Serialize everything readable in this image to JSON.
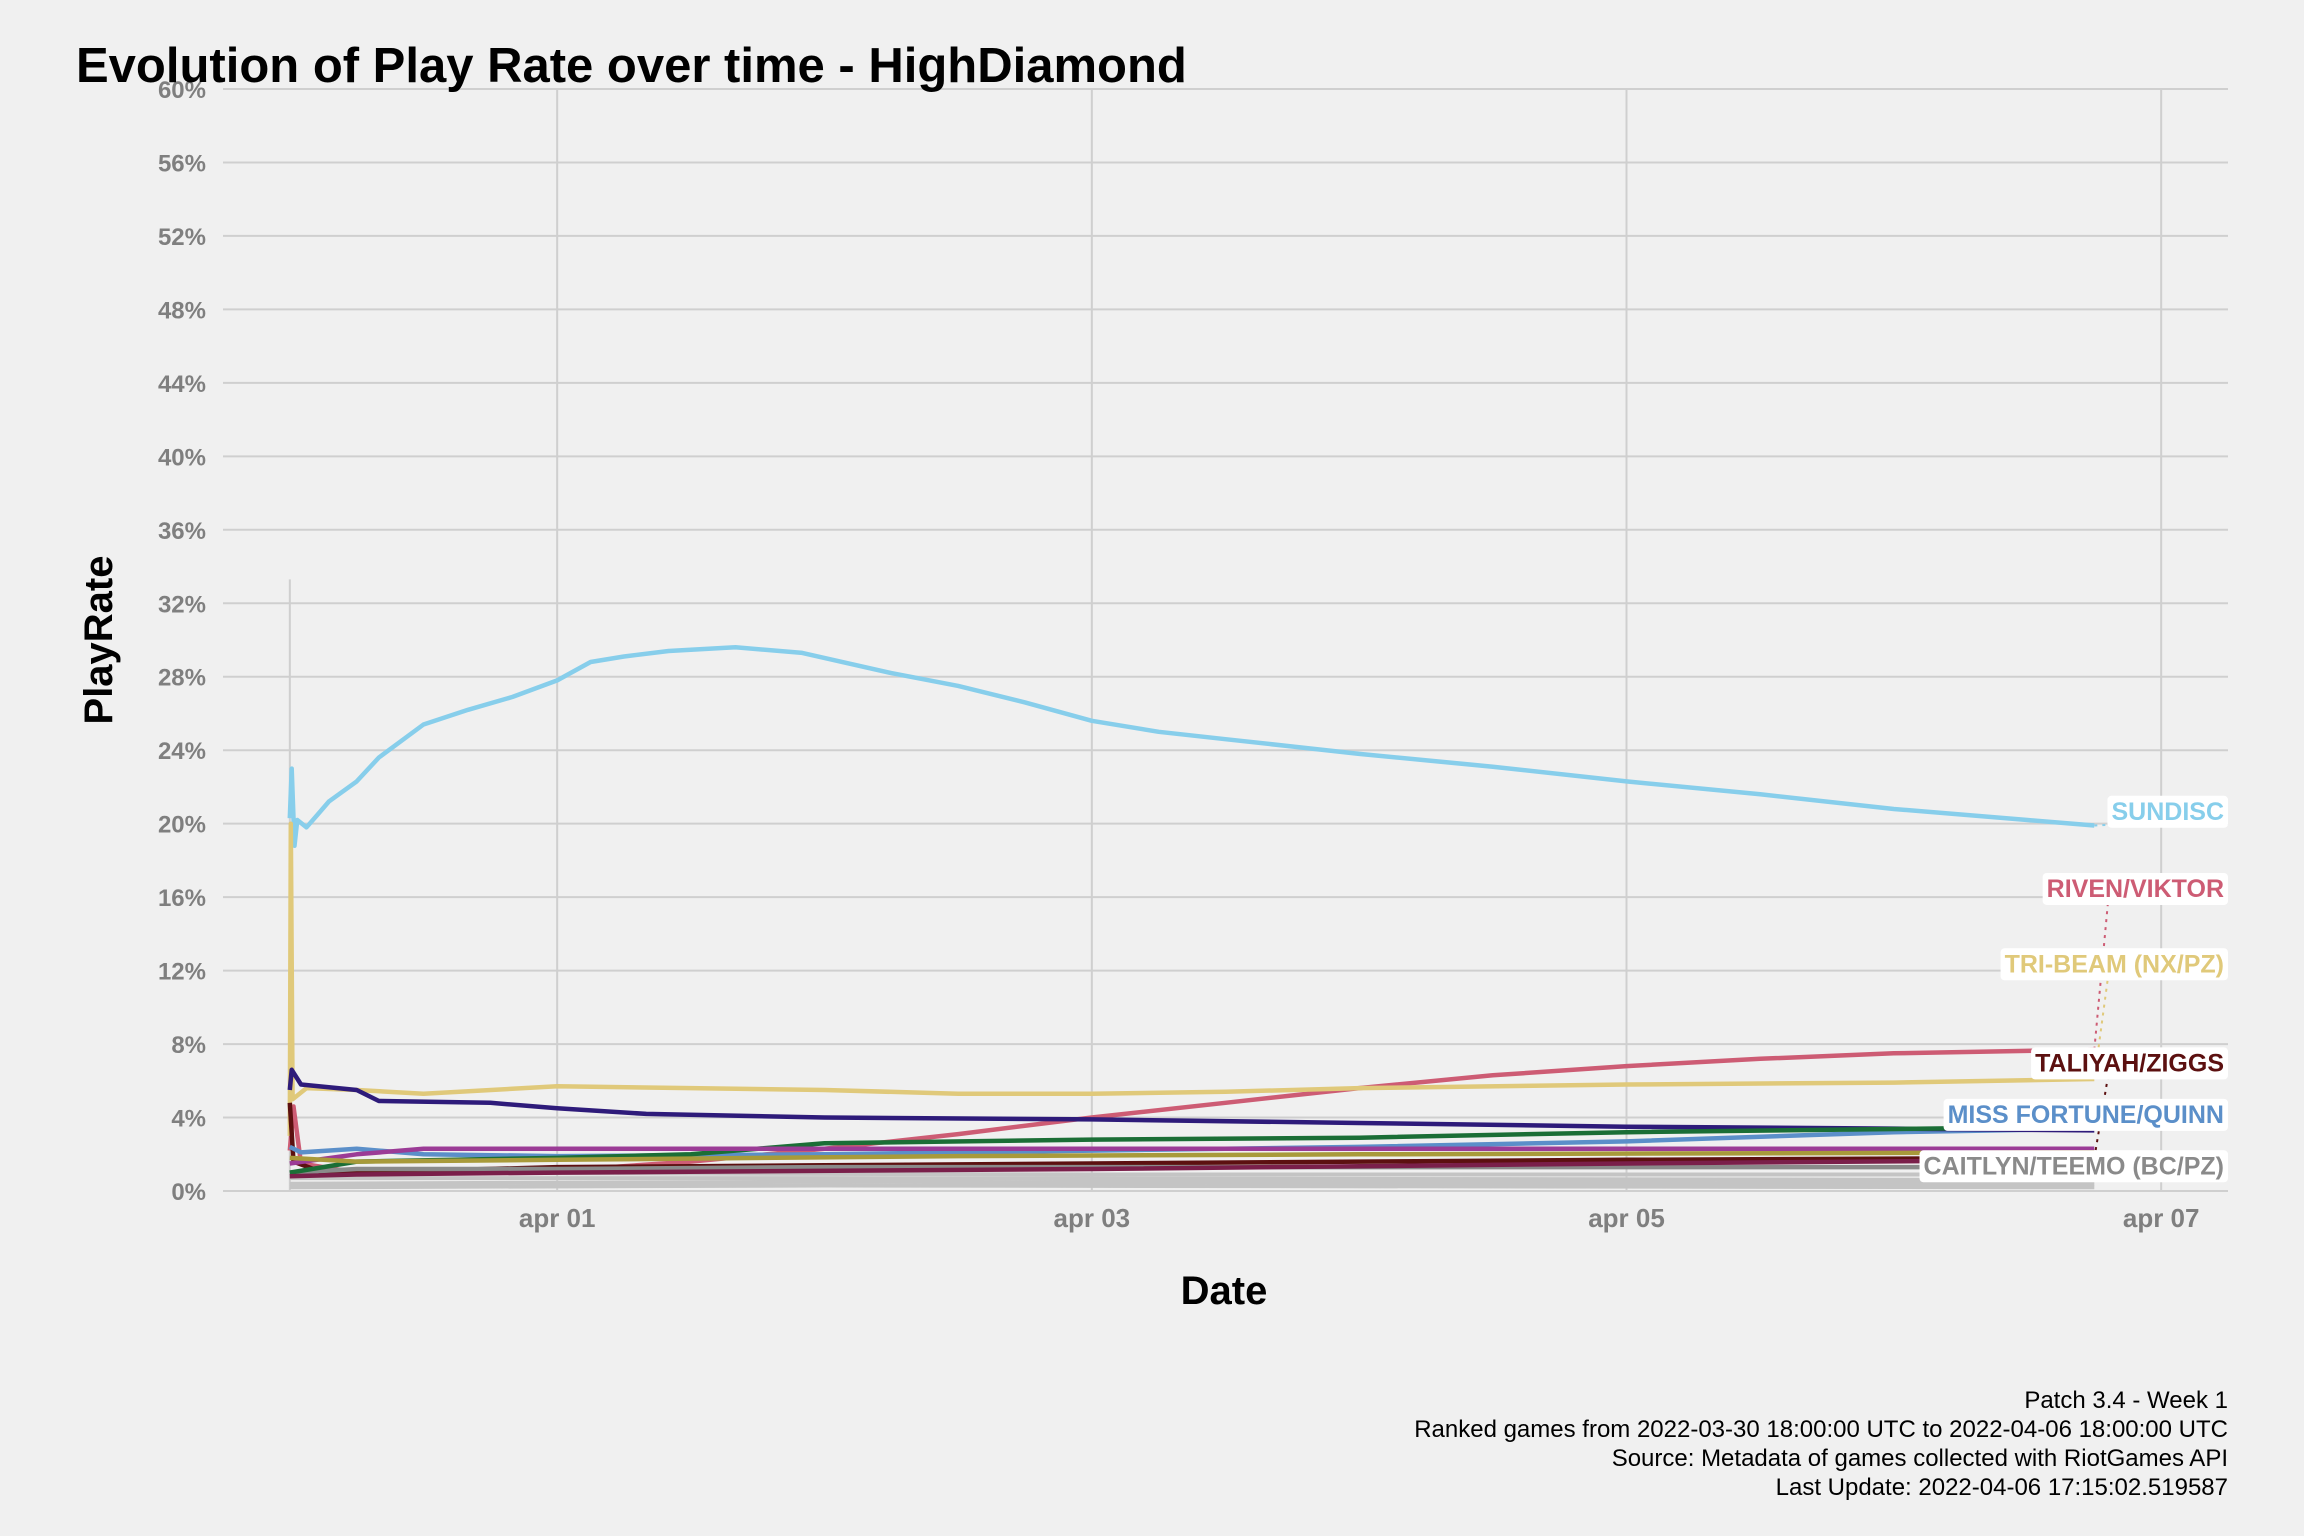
{
  "chart_data": {
    "type": "line",
    "title": "Evolution of Play Rate over time - HighDiamond",
    "xlabel": "Date",
    "ylabel": "PlayRate",
    "x_range": [
      "2022-03-30 18:00",
      "2022-04-07 06:00"
    ],
    "ylim": [
      0,
      60
    ],
    "y_ticks": [
      "0%",
      "4%",
      "8%",
      "12%",
      "16%",
      "20%",
      "24%",
      "28%",
      "32%",
      "36%",
      "40%",
      "44%",
      "48%",
      "52%",
      "56%",
      "60%"
    ],
    "y_tick_values": [
      0,
      4,
      8,
      12,
      16,
      20,
      24,
      28,
      32,
      36,
      40,
      44,
      48,
      52,
      56,
      60
    ],
    "x_ticks": [
      {
        "label": "apr 01",
        "x": "2022-04-01 00:00"
      },
      {
        "label": "apr 03",
        "x": "2022-04-03 00:00"
      },
      {
        "label": "apr 05",
        "x": "2022-04-05 00:00"
      },
      {
        "label": "apr 07",
        "x": "2022-04-07 00:00"
      }
    ],
    "grid": true,
    "legend": "direct labels at right end of lines",
    "series": [
      {
        "name": "SUNDISC",
        "color": "#87ceeb",
        "label_y": 20.7,
        "label_anchor": [
          20,
          20
        ],
        "points": [
          [
            "2022-03-31 00:00",
            20.3
          ],
          [
            "2022-03-31 00:10",
            23.0
          ],
          [
            "2022-03-31 00:25",
            18.8
          ],
          [
            "2022-03-31 00:40",
            20.2
          ],
          [
            "2022-03-31 01:30",
            19.8
          ],
          [
            "2022-03-31 02:30",
            20.5
          ],
          [
            "2022-03-31 03:30",
            21.2
          ],
          [
            "2022-03-31 06:00",
            22.3
          ],
          [
            "2022-03-31 08:00",
            23.6
          ],
          [
            "2022-03-31 12:00",
            25.4
          ],
          [
            "2022-03-31 16:00",
            26.2
          ],
          [
            "2022-03-31 20:00",
            26.9
          ],
          [
            "2022-04-01 00:00",
            27.8
          ],
          [
            "2022-04-01 03:00",
            28.8
          ],
          [
            "2022-04-01 06:00",
            29.1
          ],
          [
            "2022-04-01 10:00",
            29.4
          ],
          [
            "2022-04-01 16:00",
            29.6
          ],
          [
            "2022-04-01 22:00",
            29.3
          ],
          [
            "2022-04-02 06:00",
            28.2
          ],
          [
            "2022-04-02 12:00",
            27.5
          ],
          [
            "2022-04-02 18:00",
            26.6
          ],
          [
            "2022-04-03 00:00",
            25.6
          ],
          [
            "2022-04-03 06:00",
            25.0
          ],
          [
            "2022-04-03 12:00",
            24.6
          ],
          [
            "2022-04-03 18:00",
            24.2
          ],
          [
            "2022-04-04 00:00",
            23.8
          ],
          [
            "2022-04-04 12:00",
            23.1
          ],
          [
            "2022-04-05 00:00",
            22.3
          ],
          [
            "2022-04-05 12:00",
            21.6
          ],
          [
            "2022-04-06 00:00",
            20.8
          ],
          [
            "2022-04-06 12:00",
            20.2
          ],
          [
            "2022-04-06 18:00",
            19.9
          ]
        ]
      },
      {
        "name": "RIVEN/VIKTOR",
        "color": "#cd5c74",
        "label_y": 16.5,
        "label_anchor": [
          20,
          15
        ],
        "points": [
          [
            "2022-03-31 00:00",
            2.2
          ],
          [
            "2022-03-31 00:20",
            4.6
          ],
          [
            "2022-03-31 01:00",
            1.5
          ],
          [
            "2022-03-31 06:00",
            1.0
          ],
          [
            "2022-04-01 00:00",
            1.1
          ],
          [
            "2022-04-01 12:00",
            1.6
          ],
          [
            "2022-04-02 00:00",
            2.3
          ],
          [
            "2022-04-02 12:00",
            3.1
          ],
          [
            "2022-04-03 00:00",
            4.0
          ],
          [
            "2022-04-03 12:00",
            4.8
          ],
          [
            "2022-04-04 00:00",
            5.6
          ],
          [
            "2022-04-04 12:00",
            6.3
          ],
          [
            "2022-04-05 00:00",
            6.8
          ],
          [
            "2022-04-05 12:00",
            7.2
          ],
          [
            "2022-04-06 00:00",
            7.5
          ],
          [
            "2022-04-06 18:00",
            7.7
          ]
        ]
      },
      {
        "name": "TRI-BEAM (NX/PZ)",
        "color": "#e0c97a",
        "label_y": 12.4,
        "label_anchor": [
          20,
          12
        ],
        "points": [
          [
            "2022-03-31 00:00",
            3.0
          ],
          [
            "2022-03-31 00:05",
            20.0
          ],
          [
            "2022-03-31 00:15",
            5.0
          ],
          [
            "2022-03-31 01:30",
            5.6
          ],
          [
            "2022-03-31 06:00",
            5.5
          ],
          [
            "2022-03-31 12:00",
            5.3
          ],
          [
            "2022-04-01 00:00",
            5.7
          ],
          [
            "2022-04-01 12:00",
            5.6
          ],
          [
            "2022-04-02 00:00",
            5.5
          ],
          [
            "2022-04-02 12:00",
            5.3
          ],
          [
            "2022-04-03 00:00",
            5.3
          ],
          [
            "2022-04-03 12:00",
            5.4
          ],
          [
            "2022-04-04 00:00",
            5.6
          ],
          [
            "2022-04-05 00:00",
            5.8
          ],
          [
            "2022-04-06 00:00",
            5.9
          ],
          [
            "2022-04-06 18:00",
            6.1
          ]
        ]
      },
      {
        "name": "TALIYAH/ZIGGS",
        "color": "#5c1010",
        "label_y": 7.0,
        "label_anchor": [
          19,
          1.8
        ],
        "points": [
          [
            "2022-03-31 00:00",
            4.8
          ],
          [
            "2022-03-31 00:20",
            1.6
          ],
          [
            "2022-03-31 03:00",
            1.0
          ],
          [
            "2022-03-31 12:00",
            1.1
          ],
          [
            "2022-04-01 00:00",
            1.3
          ],
          [
            "2022-04-02 00:00",
            1.4
          ],
          [
            "2022-04-03 00:00",
            1.5
          ],
          [
            "2022-04-04 00:00",
            1.6
          ],
          [
            "2022-04-05 00:00",
            1.7
          ],
          [
            "2022-04-06 18:00",
            1.8
          ]
        ]
      },
      {
        "name": "MISS FORTUNE/QUINN",
        "color": "#5b8fc9",
        "label_y": 4.2,
        "label_anchor": [
          19,
          3.4
        ],
        "points": [
          [
            "2022-03-31 00:00",
            2.4
          ],
          [
            "2022-03-31 01:00",
            2.1
          ],
          [
            "2022-03-31 06:00",
            2.3
          ],
          [
            "2022-03-31 12:00",
            2.0
          ],
          [
            "2022-04-01 00:00",
            1.9
          ],
          [
            "2022-04-02 00:00",
            2.0
          ],
          [
            "2022-04-03 00:00",
            2.2
          ],
          [
            "2022-04-04 00:00",
            2.4
          ],
          [
            "2022-04-05 00:00",
            2.7
          ],
          [
            "2022-04-06 00:00",
            3.2
          ],
          [
            "2022-04-06 18:00",
            3.4
          ]
        ]
      },
      {
        "name": "CAITLYN/TEEMO (BC/PZ)",
        "color": "#8a8a8a",
        "label_y": 1.4,
        "label_anchor": [
          19,
          1.3
        ],
        "points": [
          [
            "2022-03-31 00:00",
            1.0
          ],
          [
            "2022-03-31 06:00",
            1.2
          ],
          [
            "2022-04-01 00:00",
            1.2
          ],
          [
            "2022-04-02 00:00",
            1.3
          ],
          [
            "2022-04-03 00:00",
            1.3
          ],
          [
            "2022-04-04 00:00",
            1.3
          ],
          [
            "2022-04-05 00:00",
            1.3
          ],
          [
            "2022-04-06 18:00",
            1.3
          ]
        ]
      },
      {
        "name": "",
        "color": "#2e1b7a",
        "points": [
          [
            "2022-03-31 00:00",
            5.5
          ],
          [
            "2022-03-31 00:10",
            6.6
          ],
          [
            "2022-03-31 01:00",
            5.8
          ],
          [
            "2022-03-31 06:00",
            5.5
          ],
          [
            "2022-03-31 08:00",
            4.9
          ],
          [
            "2022-03-31 18:00",
            4.8
          ],
          [
            "2022-04-01 00:00",
            4.5
          ],
          [
            "2022-04-01 08:00",
            4.2
          ],
          [
            "2022-04-02 00:00",
            4.0
          ],
          [
            "2022-04-03 00:00",
            3.9
          ],
          [
            "2022-04-04 00:00",
            3.7
          ],
          [
            "2022-04-05 00:00",
            3.5
          ],
          [
            "2022-04-06 00:00",
            3.4
          ],
          [
            "2022-04-06 18:00",
            3.3
          ]
        ]
      },
      {
        "name": "",
        "color": "#1b6e36",
        "points": [
          [
            "2022-03-31 00:00",
            1.0
          ],
          [
            "2022-03-31 06:00",
            1.6
          ],
          [
            "2022-04-01 00:00",
            1.8
          ],
          [
            "2022-04-01 12:00",
            2.0
          ],
          [
            "2022-04-02 00:00",
            2.6
          ],
          [
            "2022-04-03 00:00",
            2.8
          ],
          [
            "2022-04-04 00:00",
            2.9
          ],
          [
            "2022-04-05 00:00",
            3.2
          ],
          [
            "2022-04-06 18:00",
            3.5
          ]
        ]
      },
      {
        "name": "",
        "color": "#9b3b96",
        "points": [
          [
            "2022-03-31 00:00",
            1.5
          ],
          [
            "2022-03-31 06:00",
            2.0
          ],
          [
            "2022-03-31 12:00",
            2.3
          ],
          [
            "2022-04-01 00:00",
            2.3
          ],
          [
            "2022-04-03 00:00",
            2.3
          ],
          [
            "2022-04-05 00:00",
            2.3
          ],
          [
            "2022-04-06 18:00",
            2.3
          ]
        ]
      },
      {
        "name": "",
        "color": "#a89a3a",
        "points": [
          [
            "2022-03-31 00:00",
            1.8
          ],
          [
            "2022-03-31 06:00",
            1.6
          ],
          [
            "2022-04-01 00:00",
            1.7
          ],
          [
            "2022-04-02 12:00",
            1.9
          ],
          [
            "2022-04-04 00:00",
            2.0
          ],
          [
            "2022-04-06 18:00",
            2.1
          ]
        ]
      },
      {
        "name": "",
        "color": "#7a1f4a",
        "points": [
          [
            "2022-03-31 00:00",
            0.8
          ],
          [
            "2022-03-31 06:00",
            0.9
          ],
          [
            "2022-04-01 00:00",
            1.0
          ],
          [
            "2022-04-03 00:00",
            1.2
          ],
          [
            "2022-04-05 00:00",
            1.5
          ],
          [
            "2022-04-06 18:00",
            1.7
          ]
        ]
      },
      {
        "name": "",
        "color": "#c4c4c4",
        "points": [
          [
            "2022-03-31 00:00",
            0.4
          ],
          [
            "2022-04-02 00:00",
            0.5
          ],
          [
            "2022-04-06 18:00",
            0.4
          ]
        ]
      },
      {
        "name": "",
        "color": "#c4c4c4",
        "points": [
          [
            "2022-03-31 00:00",
            0.7
          ],
          [
            "2022-04-02 00:00",
            0.7
          ],
          [
            "2022-04-06 18:00",
            0.6
          ]
        ]
      },
      {
        "name": "",
        "color": "#c4c4c4",
        "points": [
          [
            "2022-03-31 00:00",
            0.2
          ],
          [
            "2022-04-02 00:00",
            0.3
          ],
          [
            "2022-04-06 18:00",
            0.2
          ]
        ]
      },
      {
        "name": "",
        "color": "#c4c4c4",
        "points": [
          [
            "2022-03-31 00:00",
            1.0
          ],
          [
            "2022-04-03 00:00",
            0.9
          ],
          [
            "2022-04-06 18:00",
            0.9
          ]
        ]
      }
    ]
  },
  "caption": {
    "lines": [
      "Patch 3.4 - Week 1",
      "Ranked games from 2022-03-30 18:00:00 UTC to 2022-04-06 18:00:00 UTC",
      "Source: Metadata of games collected with RiotGames API",
      "Last Update: 2022-04-06 17:15:02.519587"
    ]
  }
}
